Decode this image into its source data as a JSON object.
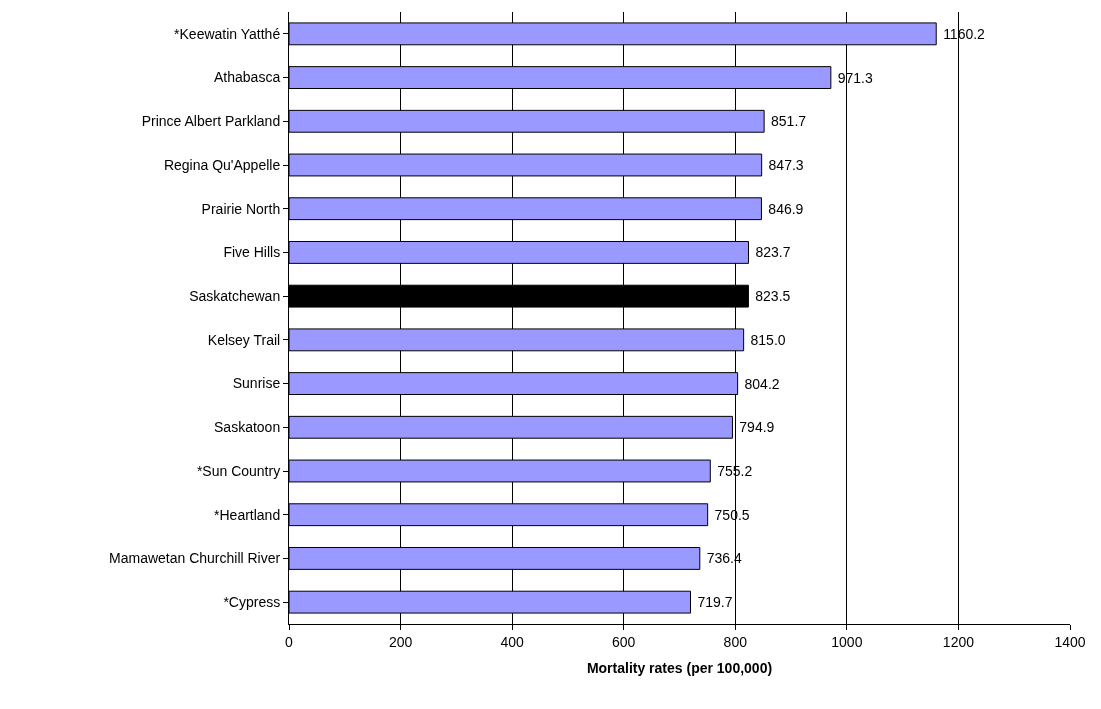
{
  "chart_data": {
    "type": "bar",
    "orientation": "horizontal",
    "xlabel": "Mortality rates (per 100,000)",
    "categories": [
      "*Keewatin Yatthé",
      "Athabasca",
      "Prince Albert Parkland",
      "Regina Qu'Appelle",
      "Prairie North",
      "Five Hills",
      "Saskatchewan",
      "Kelsey Trail",
      "Sunrise",
      "Saskatoon",
      "*Sun Country",
      "*Heartland",
      "Mamawetan Churchill River",
      "*Cypress"
    ],
    "values": [
      1160.2,
      971.3,
      851.7,
      847.3,
      846.9,
      823.7,
      823.5,
      815.0,
      804.2,
      794.9,
      755.2,
      750.5,
      736.4,
      719.7
    ],
    "value_labels": [
      "1160.2",
      "971.3",
      "851.7",
      "847.3",
      "846.9",
      "823.7",
      "823.5",
      "815.0",
      "804.2",
      "794.9",
      "755.2",
      "750.5",
      "736.4",
      "719.7"
    ],
    "colors": [
      "#9999ff",
      "#9999ff",
      "#9999ff",
      "#9999ff",
      "#9999ff",
      "#9999ff",
      "#000000",
      "#9999ff",
      "#9999ff",
      "#9999ff",
      "#9999ff",
      "#9999ff",
      "#9999ff",
      "#9999ff"
    ],
    "xlim": [
      0,
      1400
    ],
    "xticks": [
      0,
      200,
      400,
      600,
      800,
      1000,
      1200,
      1400
    ],
    "grid": "x"
  }
}
